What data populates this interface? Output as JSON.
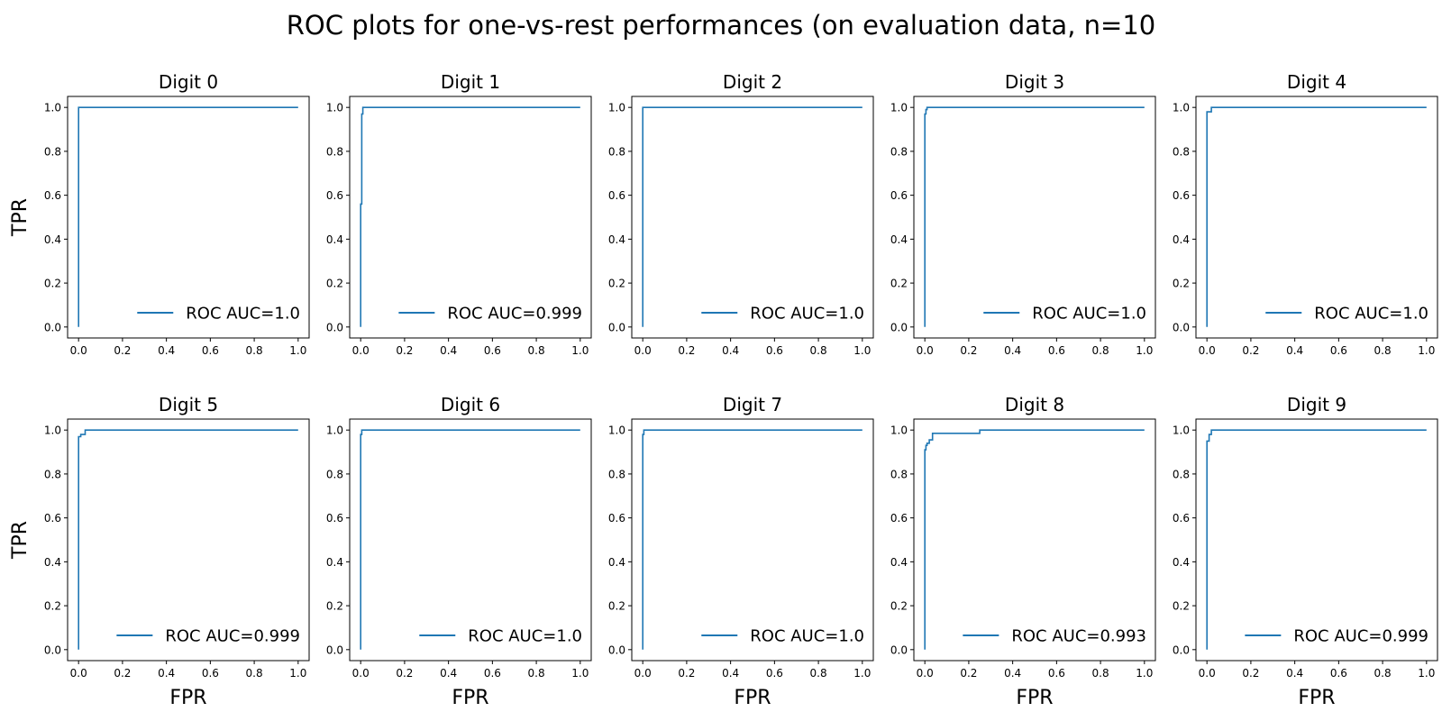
{
  "figure": {
    "title": "ROC plots for one-vs-rest performances (on evaluation data, n=10"
  },
  "colors": {
    "line": "#1f77b4",
    "axes": "#000000",
    "background": "#ffffff"
  },
  "chart_data": [
    {
      "type": "line",
      "title": "Digit 0",
      "xlabel": "",
      "ylabel": "TPR",
      "xlim": [
        -0.05,
        1.05
      ],
      "ylim": [
        -0.05,
        1.05
      ],
      "xticks": [
        "0.0",
        "0.2",
        "0.4",
        "0.6",
        "0.8",
        "1.0"
      ],
      "yticks": [
        "0.0",
        "0.2",
        "0.4",
        "0.6",
        "0.8",
        "1.0"
      ],
      "grid": false,
      "legend_position": "lower right",
      "series": [
        {
          "name": "ROC AUC=1.0",
          "x": [
            0,
            0,
            1
          ],
          "y": [
            0,
            1,
            1
          ]
        }
      ]
    },
    {
      "type": "line",
      "title": "Digit 1",
      "xlabel": "",
      "ylabel": "",
      "xlim": [
        -0.05,
        1.05
      ],
      "ylim": [
        -0.05,
        1.05
      ],
      "xticks": [
        "0.0",
        "0.2",
        "0.4",
        "0.6",
        "0.8",
        "1.0"
      ],
      "yticks": [
        "0.0",
        "0.2",
        "0.4",
        "0.6",
        "0.8",
        "1.0"
      ],
      "grid": false,
      "legend_position": "lower right",
      "series": [
        {
          "name": "ROC AUC=0.999",
          "x": [
            0,
            0,
            0.005,
            0.005,
            0.01,
            0.01,
            1
          ],
          "y": [
            0,
            0.56,
            0.56,
            0.97,
            0.97,
            1,
            1
          ]
        }
      ]
    },
    {
      "type": "line",
      "title": "Digit 2",
      "xlabel": "",
      "ylabel": "",
      "xlim": [
        -0.05,
        1.05
      ],
      "ylim": [
        -0.05,
        1.05
      ],
      "xticks": [
        "0.0",
        "0.2",
        "0.4",
        "0.6",
        "0.8",
        "1.0"
      ],
      "yticks": [
        "0.0",
        "0.2",
        "0.4",
        "0.6",
        "0.8",
        "1.0"
      ],
      "grid": false,
      "legend_position": "lower right",
      "series": [
        {
          "name": "ROC AUC=1.0",
          "x": [
            0,
            0,
            1
          ],
          "y": [
            0,
            1,
            1
          ]
        }
      ]
    },
    {
      "type": "line",
      "title": "Digit 3",
      "xlabel": "",
      "ylabel": "",
      "xlim": [
        -0.05,
        1.05
      ],
      "ylim": [
        -0.05,
        1.05
      ],
      "xticks": [
        "0.0",
        "0.2",
        "0.4",
        "0.6",
        "0.8",
        "1.0"
      ],
      "yticks": [
        "0.0",
        "0.2",
        "0.4",
        "0.6",
        "0.8",
        "1.0"
      ],
      "grid": false,
      "legend_position": "lower right",
      "series": [
        {
          "name": "ROC AUC=1.0",
          "x": [
            0,
            0,
            0.005,
            0.005,
            0.01,
            0.01,
            1
          ],
          "y": [
            0,
            0.97,
            0.97,
            0.99,
            0.99,
            1,
            1
          ]
        }
      ]
    },
    {
      "type": "line",
      "title": "Digit 4",
      "xlabel": "",
      "ylabel": "",
      "xlim": [
        -0.05,
        1.05
      ],
      "ylim": [
        -0.05,
        1.05
      ],
      "xticks": [
        "0.0",
        "0.2",
        "0.4",
        "0.6",
        "0.8",
        "1.0"
      ],
      "yticks": [
        "0.0",
        "0.2",
        "0.4",
        "0.6",
        "0.8",
        "1.0"
      ],
      "grid": false,
      "legend_position": "lower right",
      "series": [
        {
          "name": "ROC AUC=1.0",
          "x": [
            0,
            0,
            0.02,
            0.02,
            1
          ],
          "y": [
            0,
            0.98,
            0.98,
            1,
            1
          ]
        }
      ]
    },
    {
      "type": "line",
      "title": "Digit 5",
      "xlabel": "FPR",
      "ylabel": "TPR",
      "xlim": [
        -0.05,
        1.05
      ],
      "ylim": [
        -0.05,
        1.05
      ],
      "xticks": [
        "0.0",
        "0.2",
        "0.4",
        "0.6",
        "0.8",
        "1.0"
      ],
      "yticks": [
        "0.0",
        "0.2",
        "0.4",
        "0.6",
        "0.8",
        "1.0"
      ],
      "grid": false,
      "legend_position": "lower right",
      "series": [
        {
          "name": "ROC AUC=0.999",
          "x": [
            0,
            0,
            0.01,
            0.01,
            0.03,
            0.03,
            1
          ],
          "y": [
            0,
            0.97,
            0.97,
            0.98,
            0.98,
            1,
            1
          ]
        }
      ]
    },
    {
      "type": "line",
      "title": "Digit 6",
      "xlabel": "FPR",
      "ylabel": "",
      "xlim": [
        -0.05,
        1.05
      ],
      "ylim": [
        -0.05,
        1.05
      ],
      "xticks": [
        "0.0",
        "0.2",
        "0.4",
        "0.6",
        "0.8",
        "1.0"
      ],
      "yticks": [
        "0.0",
        "0.2",
        "0.4",
        "0.6",
        "0.8",
        "1.0"
      ],
      "grid": false,
      "legend_position": "lower right",
      "series": [
        {
          "name": "ROC AUC=1.0",
          "x": [
            0,
            0,
            0.005,
            0.005,
            1
          ],
          "y": [
            0,
            0.98,
            0.98,
            1,
            1
          ]
        }
      ]
    },
    {
      "type": "line",
      "title": "Digit 7",
      "xlabel": "FPR",
      "ylabel": "",
      "xlim": [
        -0.05,
        1.05
      ],
      "ylim": [
        -0.05,
        1.05
      ],
      "xticks": [
        "0.0",
        "0.2",
        "0.4",
        "0.6",
        "0.8",
        "1.0"
      ],
      "yticks": [
        "0.0",
        "0.2",
        "0.4",
        "0.6",
        "0.8",
        "1.0"
      ],
      "grid": false,
      "legend_position": "lower right",
      "series": [
        {
          "name": "ROC AUC=1.0",
          "x": [
            0,
            0,
            0.005,
            0.005,
            1
          ],
          "y": [
            0,
            0.98,
            0.98,
            1,
            1
          ]
        }
      ]
    },
    {
      "type": "line",
      "title": "Digit 8",
      "xlabel": "FPR",
      "ylabel": "",
      "xlim": [
        -0.05,
        1.05
      ],
      "ylim": [
        -0.05,
        1.05
      ],
      "xticks": [
        "0.0",
        "0.2",
        "0.4",
        "0.6",
        "0.8",
        "1.0"
      ],
      "yticks": [
        "0.0",
        "0.2",
        "0.4",
        "0.6",
        "0.8",
        "1.0"
      ],
      "grid": false,
      "legend_position": "lower right",
      "series": [
        {
          "name": "ROC AUC=0.993",
          "x": [
            0,
            0,
            0.005,
            0.005,
            0.01,
            0.01,
            0.02,
            0.02,
            0.035,
            0.035,
            0.25,
            0.25,
            1
          ],
          "y": [
            0,
            0.91,
            0.91,
            0.93,
            0.93,
            0.94,
            0.94,
            0.955,
            0.955,
            0.985,
            0.985,
            1,
            1
          ]
        }
      ]
    },
    {
      "type": "line",
      "title": "Digit 9",
      "xlabel": "FPR",
      "ylabel": "",
      "xlim": [
        -0.05,
        1.05
      ],
      "ylim": [
        -0.05,
        1.05
      ],
      "xticks": [
        "0.0",
        "0.2",
        "0.4",
        "0.6",
        "0.8",
        "1.0"
      ],
      "yticks": [
        "0.0",
        "0.2",
        "0.4",
        "0.6",
        "0.8",
        "1.0"
      ],
      "grid": false,
      "legend_position": "lower right",
      "series": [
        {
          "name": "ROC AUC=0.999",
          "x": [
            0,
            0,
            0.01,
            0.01,
            0.02,
            0.02,
            1
          ],
          "y": [
            0,
            0.95,
            0.95,
            0.98,
            0.98,
            1,
            1
          ]
        }
      ]
    }
  ]
}
